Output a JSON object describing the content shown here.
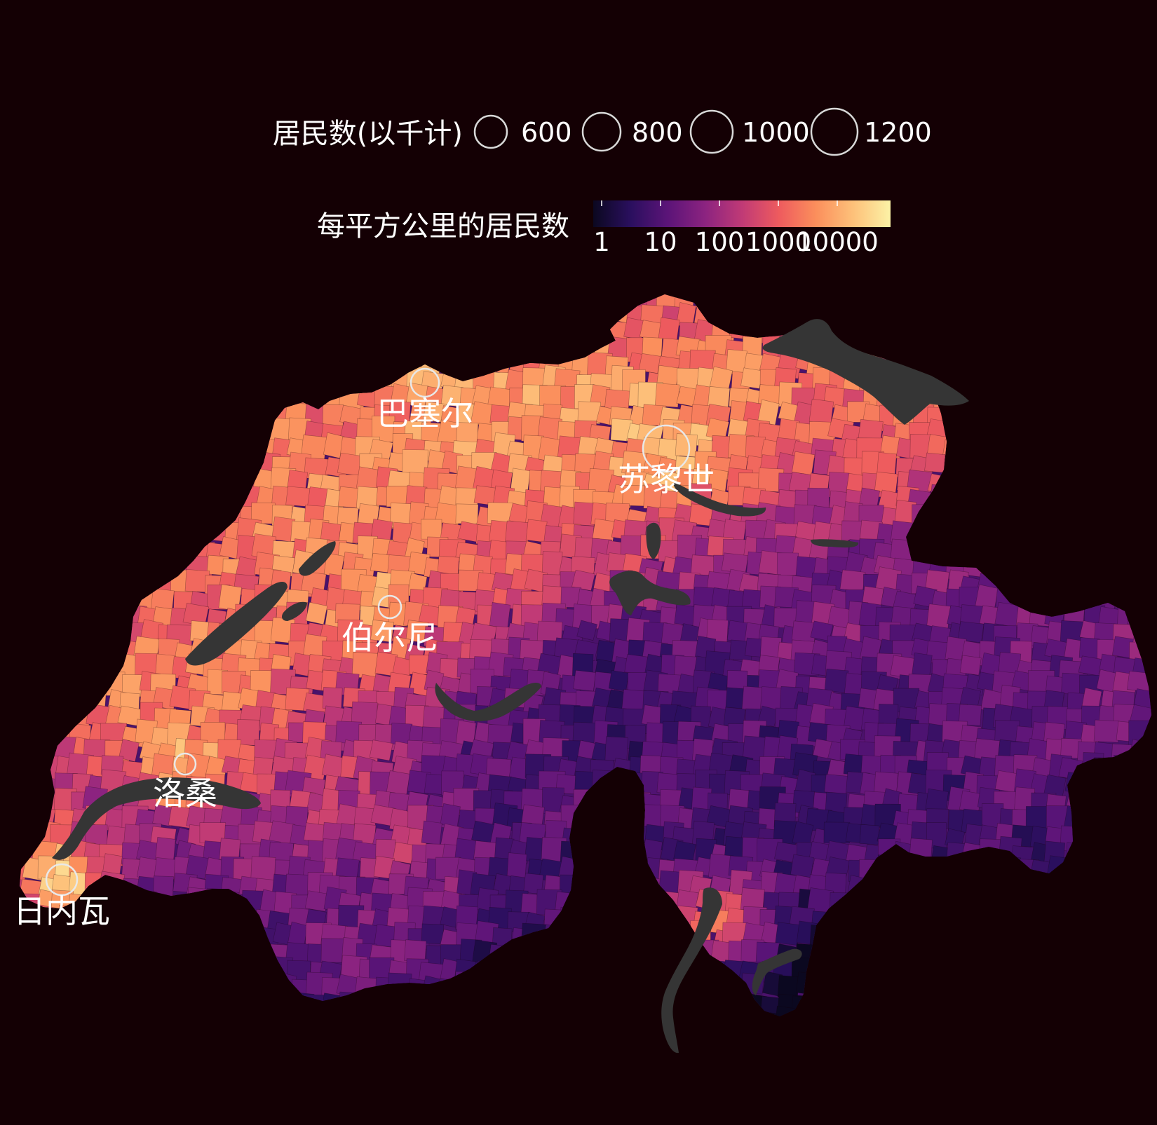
{
  "size_legend": {
    "title": "居民数(以千计)",
    "items": [
      {
        "label": "600",
        "value": 600
      },
      {
        "label": "800",
        "value": 800
      },
      {
        "label": "1000",
        "value": 1000
      },
      {
        "label": "1200",
        "value": 1200
      }
    ]
  },
  "color_legend": {
    "title": "每平方公里的居民数",
    "scale": "log",
    "ticks": [
      "1",
      "10",
      "100",
      "1000",
      "10000"
    ],
    "colors": [
      "#0b0820",
      "#2a0f5e",
      "#5b1478",
      "#8b2380",
      "#c03a76",
      "#ee5b5e",
      "#fb8f5c",
      "#fdc17a",
      "#fcf2a6"
    ]
  },
  "map": {
    "region": "Switzerland",
    "lake_color": "#353535",
    "cities": [
      {
        "name": "巴塞尔",
        "population_k": 170
      },
      {
        "name": "苏黎世",
        "population_k": 1200
      },
      {
        "name": "伯尔尼",
        "population_k": 140
      },
      {
        "name": "洛桑",
        "population_k": 140
      },
      {
        "name": "日内瓦",
        "population_k": 200
      }
    ]
  }
}
